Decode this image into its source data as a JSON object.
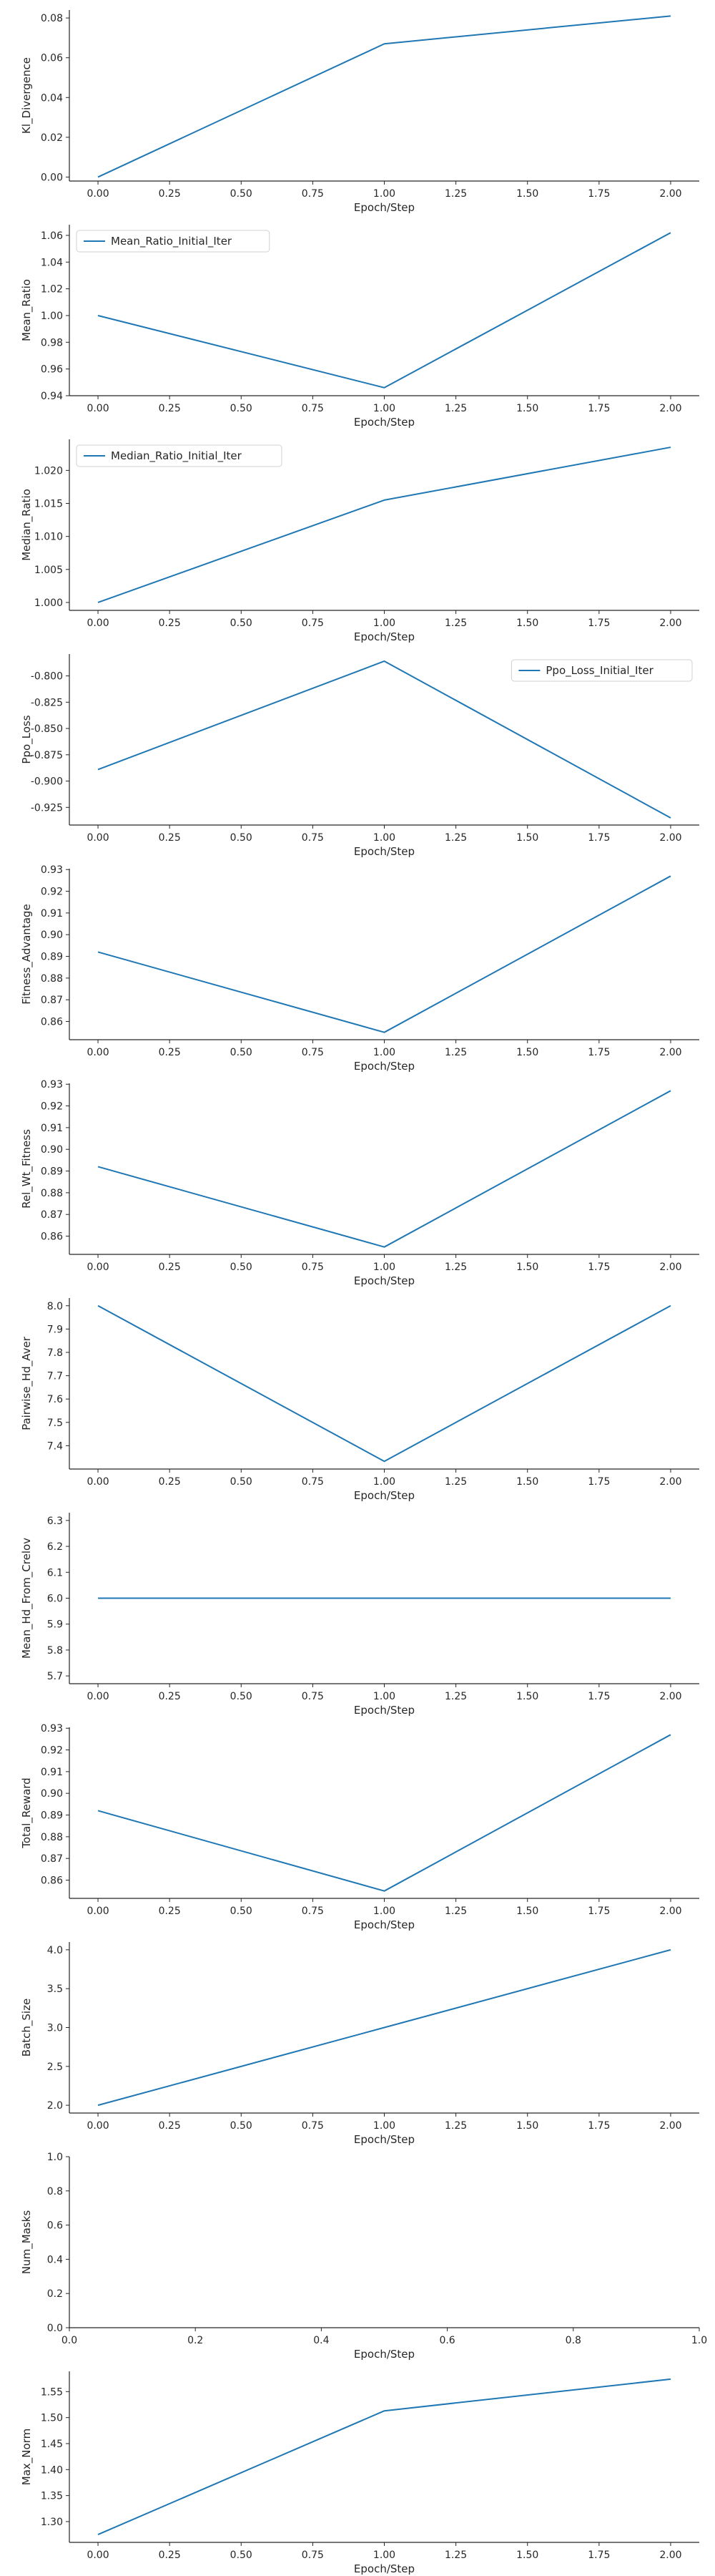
{
  "style": {
    "line_color": "#1f77b4",
    "axis_color": "#262626"
  },
  "chart_data": [
    {
      "type": "line",
      "xlabel": "Epoch/Step",
      "ylabel": "Kl_Divergence",
      "x": [
        0,
        1,
        2
      ],
      "series": [
        {
          "values": [
            0.0,
            0.067,
            0.081
          ]
        }
      ],
      "xlim": [
        -0.1,
        2.1
      ],
      "ylim": [
        -0.002,
        0.084
      ],
      "xticks": [
        "0.00",
        "0.25",
        "0.50",
        "0.75",
        "1.00",
        "1.25",
        "1.50",
        "1.75",
        "2.00"
      ],
      "yticks": [
        "0.00",
        "0.02",
        "0.04",
        "0.06",
        "0.08"
      ]
    },
    {
      "type": "line",
      "xlabel": "Epoch/Step",
      "ylabel": "Mean_Ratio",
      "x": [
        0,
        1,
        2
      ],
      "series": [
        {
          "name": "Mean_Ratio_Initial_Iter",
          "values": [
            1.0,
            0.946,
            1.062
          ]
        }
      ],
      "xlim": [
        -0.1,
        2.1
      ],
      "ylim": [
        0.94,
        1.068
      ],
      "legend": "top-left",
      "xticks": [
        "0.00",
        "0.25",
        "0.50",
        "0.75",
        "1.00",
        "1.25",
        "1.50",
        "1.75",
        "2.00"
      ],
      "yticks": [
        "0.94",
        "0.96",
        "0.98",
        "1.00",
        "1.02",
        "1.04",
        "1.06"
      ]
    },
    {
      "type": "line",
      "xlabel": "Epoch/Step",
      "ylabel": "Median_Ratio",
      "x": [
        0,
        1,
        2
      ],
      "series": [
        {
          "name": "Median_Ratio_Initial_Iter",
          "values": [
            1.0,
            1.0155,
            1.0235
          ]
        }
      ],
      "xlim": [
        -0.1,
        2.1
      ],
      "ylim": [
        0.9988,
        1.0247
      ],
      "legend": "top-left",
      "xticks": [
        "0.00",
        "0.25",
        "0.50",
        "0.75",
        "1.00",
        "1.25",
        "1.50",
        "1.75",
        "2.00"
      ],
      "yticks": [
        "1.000",
        "1.005",
        "1.010",
        "1.015",
        "1.020"
      ]
    },
    {
      "type": "line",
      "xlabel": "Epoch/Step",
      "ylabel": "Ppo_Loss",
      "x": [
        0,
        1,
        2
      ],
      "series": [
        {
          "name": "Ppo_Loss_Initial_Iter",
          "values": [
            -0.889,
            -0.786,
            -0.935
          ]
        }
      ],
      "xlim": [
        -0.1,
        2.1
      ],
      "ylim": [
        -0.9418,
        -0.7792
      ],
      "legend": "top-right",
      "xticks": [
        "0.00",
        "0.25",
        "0.50",
        "0.75",
        "1.00",
        "1.25",
        "1.50",
        "1.75",
        "2.00"
      ],
      "yticks": [
        "-0.800",
        "-0.825",
        "-0.850",
        "-0.875",
        "-0.900",
        "-0.925"
      ]
    },
    {
      "type": "line",
      "xlabel": "Epoch/Step",
      "ylabel": "Fitness_Advantage",
      "x": [
        0,
        1,
        2
      ],
      "series": [
        {
          "values": [
            0.892,
            0.855,
            0.927
          ]
        }
      ],
      "xlim": [
        -0.1,
        2.1
      ],
      "ylim": [
        0.8516,
        0.9304
      ],
      "xticks": [
        "0.00",
        "0.25",
        "0.50",
        "0.75",
        "1.00",
        "1.25",
        "1.50",
        "1.75",
        "2.00"
      ],
      "yticks": [
        "0.86",
        "0.87",
        "0.88",
        "0.89",
        "0.90",
        "0.91",
        "0.92",
        "0.93"
      ]
    },
    {
      "type": "line",
      "xlabel": "Epoch/Step",
      "ylabel": "Rel_Wt_Fitness",
      "x": [
        0,
        1,
        2
      ],
      "series": [
        {
          "values": [
            0.892,
            0.855,
            0.927
          ]
        }
      ],
      "xlim": [
        -0.1,
        2.1
      ],
      "ylim": [
        0.8516,
        0.9304
      ],
      "xticks": [
        "0.00",
        "0.25",
        "0.50",
        "0.75",
        "1.00",
        "1.25",
        "1.50",
        "1.75",
        "2.00"
      ],
      "yticks": [
        "0.86",
        "0.87",
        "0.88",
        "0.89",
        "0.90",
        "0.91",
        "0.92",
        "0.93"
      ]
    },
    {
      "type": "line",
      "xlabel": "Epoch/Step",
      "ylabel": "Pairwise_Hd_Aver",
      "x": [
        0,
        1,
        2
      ],
      "series": [
        {
          "values": [
            8.0,
            7.333,
            8.0
          ]
        }
      ],
      "xlim": [
        -0.1,
        2.1
      ],
      "ylim": [
        7.3,
        8.033
      ],
      "xticks": [
        "0.00",
        "0.25",
        "0.50",
        "0.75",
        "1.00",
        "1.25",
        "1.50",
        "1.75",
        "2.00"
      ],
      "yticks": [
        "7.4",
        "7.5",
        "7.6",
        "7.7",
        "7.8",
        "7.9",
        "8.0"
      ]
    },
    {
      "type": "line",
      "xlabel": "Epoch/Step",
      "ylabel": "Mean_Hd_From_Crelov",
      "x": [
        0,
        1,
        2
      ],
      "series": [
        {
          "values": [
            6.0,
            6.0,
            6.0
          ]
        }
      ],
      "xlim": [
        -0.1,
        2.1
      ],
      "ylim": [
        5.67,
        6.33
      ],
      "xticks": [
        "0.00",
        "0.25",
        "0.50",
        "0.75",
        "1.00",
        "1.25",
        "1.50",
        "1.75",
        "2.00"
      ],
      "yticks": [
        "5.7",
        "5.8",
        "5.9",
        "6.0",
        "6.1",
        "6.2",
        "6.3"
      ]
    },
    {
      "type": "line",
      "xlabel": "Epoch/Step",
      "ylabel": "Total_Reward",
      "x": [
        0,
        1,
        2
      ],
      "series": [
        {
          "values": [
            0.892,
            0.855,
            0.927
          ]
        }
      ],
      "xlim": [
        -0.1,
        2.1
      ],
      "ylim": [
        0.8516,
        0.9304
      ],
      "xticks": [
        "0.00",
        "0.25",
        "0.50",
        "0.75",
        "1.00",
        "1.25",
        "1.50",
        "1.75",
        "2.00"
      ],
      "yticks": [
        "0.86",
        "0.87",
        "0.88",
        "0.89",
        "0.90",
        "0.91",
        "0.92",
        "0.93"
      ]
    },
    {
      "type": "line",
      "xlabel": "Epoch/Step",
      "ylabel": "Batch_Size",
      "x": [
        0,
        1,
        2
      ],
      "series": [
        {
          "values": [
            2.0,
            3.0,
            4.0
          ]
        }
      ],
      "xlim": [
        -0.1,
        2.1
      ],
      "ylim": [
        1.9,
        4.1
      ],
      "xticks": [
        "0.00",
        "0.25",
        "0.50",
        "0.75",
        "1.00",
        "1.25",
        "1.50",
        "1.75",
        "2.00"
      ],
      "yticks": [
        "2.0",
        "2.5",
        "3.0",
        "3.5",
        "4.0"
      ]
    },
    {
      "type": "line",
      "xlabel": "Epoch/Step",
      "ylabel": "Num_Masks",
      "x": [],
      "series": [],
      "xlim": [
        0,
        1
      ],
      "ylim": [
        0,
        1
      ],
      "xticks": [
        "0.0",
        "0.2",
        "0.4",
        "0.6",
        "0.8",
        "1.0"
      ],
      "yticks": [
        "0.0",
        "0.2",
        "0.4",
        "0.6",
        "0.8",
        "1.0"
      ]
    },
    {
      "type": "line",
      "xlabel": "Epoch/Step",
      "ylabel": "Max_Norm",
      "x": [
        0,
        1,
        2
      ],
      "series": [
        {
          "values": [
            1.275,
            1.513,
            1.574
          ]
        }
      ],
      "xlim": [
        -0.1,
        2.1
      ],
      "ylim": [
        1.26,
        1.589
      ],
      "xticks": [
        "0.00",
        "0.25",
        "0.50",
        "0.75",
        "1.00",
        "1.25",
        "1.50",
        "1.75",
        "2.00"
      ],
      "yticks": [
        "1.30",
        "1.35",
        "1.40",
        "1.45",
        "1.50",
        "1.55"
      ]
    }
  ]
}
